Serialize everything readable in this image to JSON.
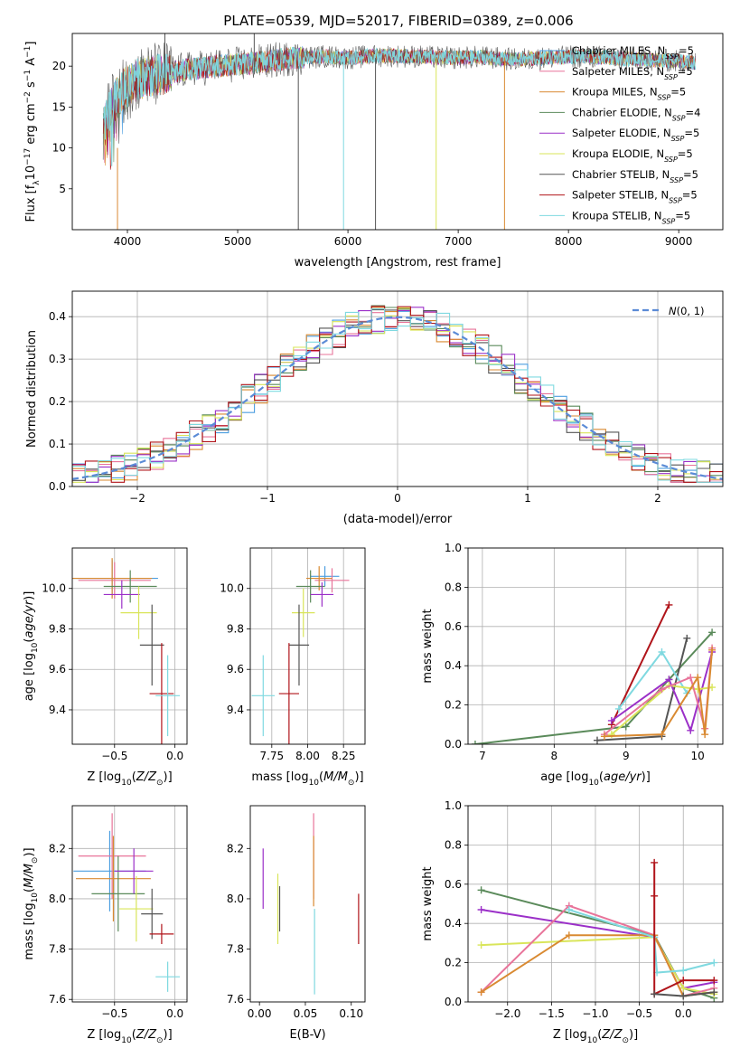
{
  "figure": {
    "title": "PLATE=0539, MJD=52017, FIBERID=0389, z=0.006"
  },
  "colors": {
    "chabrier_miles": "#4c9ee0",
    "salpeter_miles": "#e8749a",
    "kroupa_miles": "#d98a32",
    "chabrier_elodie": "#5a8a5a",
    "salpeter_elodie": "#9b30c8",
    "kroupa_elodie": "#d9e55a",
    "chabrier_stelib": "#555555",
    "salpeter_stelib": "#b0141a",
    "kroupa_stelib": "#7fd9e0",
    "gauss": "#5b8bd6",
    "grid": "#b0b0b0"
  },
  "chart_data": [
    {
      "id": "spectrum",
      "type": "line",
      "xlabel": "wavelength [Angstrom, rest frame]",
      "ylabel": "Flux [f_λ10^-17 erg cm^-2 s^-1 A^-1]",
      "xlim": [
        3500,
        9400
      ],
      "ylim": [
        0,
        24
      ],
      "xticks": [
        4000,
        5000,
        6000,
        7000,
        8000,
        9000
      ],
      "yticks": [
        5,
        10,
        15,
        20
      ],
      "grid": false,
      "legend_position": "top-right",
      "series": [
        {
          "name": "Chabrier MILES, N_SSP=5",
          "color_key": "chabrier_miles"
        },
        {
          "name": "Salpeter MILES, N_SSP=5",
          "color_key": "salpeter_miles"
        },
        {
          "name": "Kroupa MILES, N_SSP=5",
          "color_key": "kroupa_miles"
        },
        {
          "name": "Chabrier ELODIE, N_SSP=4",
          "color_key": "chabrier_elodie"
        },
        {
          "name": "Salpeter ELODIE, N_SSP=5",
          "color_key": "salpeter_elodie"
        },
        {
          "name": "Kroupa ELODIE, N_SSP=5",
          "color_key": "kroupa_elodie"
        },
        {
          "name": "Chabrier STELIB, N_SSP=5",
          "color_key": "chabrier_stelib"
        },
        {
          "name": "Salpeter STELIB, N_SSP=5",
          "color_key": "salpeter_stelib"
        },
        {
          "name": "Kroupa STELIB, N_SSP=5",
          "color_key": "kroupa_stelib"
        }
      ],
      "envelope": {
        "x": [
          3780,
          3850,
          3950,
          4100,
          4300,
          4500,
          4800,
          5000,
          5200,
          5500,
          5800,
          6000,
          6300,
          6600,
          6900,
          7200,
          7500,
          7800,
          8100,
          8400,
          8700,
          9000,
          9150
        ],
        "y": [
          12,
          15,
          17,
          18.5,
          19,
          19.5,
          20,
          20.2,
          20.5,
          21,
          21.2,
          21,
          21.3,
          21.2,
          21,
          21.1,
          20.8,
          21,
          21.2,
          21,
          20.8,
          20.6,
          20.4
        ]
      },
      "spikes": [
        {
          "x": 3910,
          "y0": 0,
          "y1": 10,
          "color_key": "kroupa_miles"
        },
        {
          "x": 5550,
          "y0": 0,
          "y1": 20,
          "color_key": "chabrier_stelib"
        },
        {
          "x": 5960,
          "y0": 0,
          "y1": 21,
          "color_key": "kroupa_stelib"
        },
        {
          "x": 6250,
          "y0": 0,
          "y1": 21,
          "color_key": "chabrier_stelib"
        },
        {
          "x": 6800,
          "y0": 0,
          "y1": 21,
          "color_key": "kroupa_elodie"
        },
        {
          "x": 7420,
          "y0": 0,
          "y1": 21,
          "color_key": "kroupa_miles"
        },
        {
          "x": 4340,
          "y0": 18,
          "y1": 24,
          "color_key": "chabrier_stelib"
        },
        {
          "x": 5150,
          "y0": 19,
          "y1": 24,
          "color_key": "chabrier_stelib"
        }
      ]
    },
    {
      "id": "residuals",
      "type": "histogram",
      "xlabel": "(data-model)/error",
      "ylabel": "Normed distribution",
      "xlim": [
        -2.5,
        2.5
      ],
      "ylim": [
        0,
        0.46
      ],
      "xticks": [
        -2,
        -1,
        0,
        1,
        2
      ],
      "yticks": [
        0.0,
        0.1,
        0.2,
        0.3,
        0.4
      ],
      "grid": true,
      "legend": "N(0,1)",
      "legend_position": "top-right",
      "bin_width": 0.1
    },
    {
      "id": "age_vs_Z",
      "type": "errorbar",
      "xlabel": "Z [log10(Z/Z⊙)]",
      "ylabel": "age [log10(age/yr)]",
      "xlim": [
        -0.85,
        0.1
      ],
      "ylim": [
        9.23,
        10.2
      ],
      "xticks": [
        -0.5,
        0.0
      ],
      "yticks": [
        9.4,
        9.6,
        9.8,
        10.0
      ],
      "grid": true,
      "points": [
        {
          "x": -0.52,
          "y": 10.05,
          "xerr": 0.38,
          "yerr": 0.09,
          "color_key": "chabrier_miles"
        },
        {
          "x": -0.5,
          "y": 10.04,
          "xerr": 0.3,
          "yerr": 0.09,
          "color_key": "salpeter_miles"
        },
        {
          "x": -0.52,
          "y": 10.05,
          "xerr": 0.33,
          "yerr": 0.1,
          "color_key": "kroupa_miles"
        },
        {
          "x": -0.37,
          "y": 10.01,
          "xerr": 0.22,
          "yerr": 0.08,
          "color_key": "chabrier_elodie"
        },
        {
          "x": -0.44,
          "y": 9.97,
          "xerr": 0.15,
          "yerr": 0.07,
          "color_key": "salpeter_elodie"
        },
        {
          "x": -0.3,
          "y": 9.88,
          "xerr": 0.15,
          "yerr": 0.13,
          "color_key": "kroupa_elodie"
        },
        {
          "x": -0.19,
          "y": 9.72,
          "xerr": 0.1,
          "yerr": 0.2,
          "color_key": "chabrier_stelib"
        },
        {
          "x": -0.11,
          "y": 9.48,
          "xerr": 0.1,
          "yerr": 0.25,
          "color_key": "salpeter_stelib"
        },
        {
          "x": -0.06,
          "y": 9.47,
          "xerr": 0.1,
          "yerr": 0.2,
          "color_key": "kroupa_stelib"
        }
      ]
    },
    {
      "id": "age_vs_mass",
      "type": "errorbar",
      "xlabel": "mass [log10(M/M⊙)]",
      "ylabel": "",
      "xlim": [
        7.6,
        8.4
      ],
      "ylim": [
        9.23,
        10.2
      ],
      "xticks": [
        7.75,
        8.0,
        8.25
      ],
      "yticks": [
        9.4,
        9.6,
        9.8,
        10.0
      ],
      "grid": true,
      "points": [
        {
          "x": 8.12,
          "y": 10.06,
          "xerr": 0.1,
          "yerr": 0.05,
          "color_key": "chabrier_miles"
        },
        {
          "x": 8.17,
          "y": 10.04,
          "xerr": 0.12,
          "yerr": 0.06,
          "color_key": "salpeter_miles"
        },
        {
          "x": 8.08,
          "y": 10.05,
          "xerr": 0.09,
          "yerr": 0.06,
          "color_key": "kroupa_miles"
        },
        {
          "x": 8.02,
          "y": 10.01,
          "xerr": 0.1,
          "yerr": 0.08,
          "color_key": "chabrier_elodie"
        },
        {
          "x": 8.1,
          "y": 9.97,
          "xerr": 0.08,
          "yerr": 0.06,
          "color_key": "salpeter_elodie"
        },
        {
          "x": 7.97,
          "y": 9.88,
          "xerr": 0.08,
          "yerr": 0.12,
          "color_key": "kroupa_elodie"
        },
        {
          "x": 7.94,
          "y": 9.72,
          "xerr": 0.07,
          "yerr": 0.2,
          "color_key": "chabrier_stelib"
        },
        {
          "x": 7.87,
          "y": 9.48,
          "xerr": 0.07,
          "yerr": 0.25,
          "color_key": "salpeter_stelib"
        },
        {
          "x": 7.69,
          "y": 9.47,
          "xerr": 0.08,
          "yerr": 0.2,
          "color_key": "kroupa_stelib"
        }
      ]
    },
    {
      "id": "weight_vs_age",
      "type": "line",
      "xlabel": "age [log10(age/yr)]",
      "ylabel": "mass weight",
      "xlim": [
        6.8,
        10.35
      ],
      "ylim": [
        0,
        1
      ],
      "xticks": [
        7,
        8,
        9,
        10
      ],
      "yticks": [
        0.0,
        0.2,
        0.4,
        0.6,
        0.8,
        1.0
      ],
      "grid": true,
      "series": [
        {
          "color_key": "chabrier_elodie",
          "x": [
            6.9,
            9.0,
            9.6,
            10.2
          ],
          "y": [
            0.0,
            0.09,
            0.33,
            0.57
          ]
        },
        {
          "color_key": "salpeter_stelib",
          "x": [
            8.8,
            9.6
          ],
          "y": [
            0.1,
            0.71
          ]
        },
        {
          "color_key": "chabrier_stelib",
          "x": [
            8.6,
            9.5,
            9.85
          ],
          "y": [
            0.02,
            0.04,
            0.54
          ]
        },
        {
          "color_key": "salpeter_elodie",
          "x": [
            8.8,
            9.6,
            9.9,
            10.2
          ],
          "y": [
            0.12,
            0.33,
            0.07,
            0.47
          ]
        },
        {
          "color_key": "kroupa_stelib",
          "x": [
            8.9,
            9.5,
            9.85
          ],
          "y": [
            0.18,
            0.47,
            0.26
          ]
        },
        {
          "color_key": "kroupa_elodie",
          "x": [
            8.8,
            9.6,
            10.0,
            10.2
          ],
          "y": [
            0.05,
            0.3,
            0.28,
            0.29
          ]
        },
        {
          "color_key": "salpeter_miles",
          "x": [
            8.7,
            9.5,
            9.9,
            10.1,
            10.2
          ],
          "y": [
            0.05,
            0.28,
            0.34,
            0.08,
            0.49
          ]
        },
        {
          "color_key": "kroupa_miles",
          "x": [
            8.7,
            9.5,
            10.0,
            10.1,
            10.2
          ],
          "y": [
            0.04,
            0.05,
            0.34,
            0.05,
            0.48
          ]
        }
      ]
    },
    {
      "id": "mass_vs_Z",
      "type": "errorbar",
      "xlabel": "Z [log10(Z/Z⊙)]",
      "ylabel": "mass [log10(M/M⊙)]",
      "xlim": [
        -0.85,
        0.1
      ],
      "ylim": [
        7.59,
        8.37
      ],
      "xticks": [
        -0.5,
        0.0
      ],
      "yticks": [
        7.6,
        7.8,
        8.0,
        8.2
      ],
      "grid": true,
      "points": [
        {
          "x": -0.54,
          "y": 8.11,
          "xerr": 0.3,
          "yerr": 0.16,
          "color_key": "chabrier_miles"
        },
        {
          "x": -0.52,
          "y": 8.17,
          "xerr": 0.28,
          "yerr": 0.17,
          "color_key": "salpeter_miles"
        },
        {
          "x": -0.51,
          "y": 8.08,
          "xerr": 0.31,
          "yerr": 0.17,
          "color_key": "kroupa_miles"
        },
        {
          "x": -0.47,
          "y": 8.02,
          "xerr": 0.22,
          "yerr": 0.15,
          "color_key": "chabrier_elodie"
        },
        {
          "x": -0.34,
          "y": 8.11,
          "xerr": 0.16,
          "yerr": 0.09,
          "color_key": "salpeter_elodie"
        },
        {
          "x": -0.32,
          "y": 7.96,
          "xerr": 0.14,
          "yerr": 0.13,
          "color_key": "kroupa_elodie"
        },
        {
          "x": -0.19,
          "y": 7.94,
          "xerr": 0.09,
          "yerr": 0.1,
          "color_key": "chabrier_stelib"
        },
        {
          "x": -0.11,
          "y": 7.86,
          "xerr": 0.1,
          "yerr": 0.04,
          "color_key": "salpeter_stelib"
        },
        {
          "x": -0.06,
          "y": 7.69,
          "xerr": 0.1,
          "yerr": 0.06,
          "color_key": "kroupa_stelib"
        }
      ]
    },
    {
      "id": "mass_vs_ebv",
      "type": "errorbar",
      "xlabel": "E(B-V)",
      "ylabel": "",
      "xlim": [
        -0.01,
        0.115
      ],
      "ylim": [
        7.59,
        8.37
      ],
      "xticks": [
        0.0,
        0.05,
        0.1
      ],
      "yticks": [
        7.6,
        7.8,
        8.0,
        8.2
      ],
      "grid": false,
      "points": [
        {
          "x": 0.004,
          "y": 8.08,
          "yerr": 0.12,
          "color_key": "salpeter_elodie"
        },
        {
          "x": 0.02,
          "y": 7.96,
          "yerr": 0.14,
          "color_key": "kroupa_elodie"
        },
        {
          "x": 0.022,
          "y": 7.96,
          "yerr": 0.09,
          "color_key": "chabrier_stelib"
        },
        {
          "x": 0.059,
          "y": 8.17,
          "yerr": 0.17,
          "color_key": "salpeter_miles"
        },
        {
          "x": 0.059,
          "y": 8.11,
          "yerr": 0.14,
          "color_key": "kroupa_miles"
        },
        {
          "x": 0.06,
          "y": 7.79,
          "yerr": 0.17,
          "color_key": "kroupa_stelib"
        },
        {
          "x": 0.108,
          "y": 7.92,
          "yerr": 0.1,
          "color_key": "salpeter_stelib"
        }
      ]
    },
    {
      "id": "weight_vs_Z",
      "type": "line",
      "xlabel": "Z [log10(Z/Z⊙)]",
      "ylabel": "mass weight",
      "xlim": [
        -2.45,
        0.45
      ],
      "ylim": [
        0,
        1
      ],
      "xticks": [
        -2.0,
        -1.5,
        -1.0,
        -0.5,
        0.0
      ],
      "yticks": [
        0.0,
        0.2,
        0.4,
        0.6,
        0.8,
        1.0
      ],
      "grid": true,
      "series": [
        {
          "color_key": "chabrier_elodie",
          "x": [
            -2.3,
            -0.33,
            0.0,
            0.35
          ],
          "y": [
            0.57,
            0.34,
            0.07,
            0.02
          ]
        },
        {
          "color_key": "salpeter_elodie",
          "x": [
            -2.3,
            -0.33,
            0.0,
            0.35
          ],
          "y": [
            0.47,
            0.33,
            0.07,
            0.1
          ]
        },
        {
          "color_key": "kroupa_elodie",
          "x": [
            -2.3,
            -0.33,
            0.0,
            0.35
          ],
          "y": [
            0.29,
            0.33,
            0.07,
            0.04
          ]
        },
        {
          "color_key": "salpeter_miles",
          "x": [
            -2.3,
            -1.3,
            -0.33,
            0.0,
            0.35
          ],
          "y": [
            0.05,
            0.49,
            0.34,
            0.03,
            0.07
          ]
        },
        {
          "color_key": "kroupa_miles",
          "x": [
            -2.3,
            -1.3,
            -0.33,
            0.0,
            0.35
          ],
          "y": [
            0.05,
            0.34,
            0.34,
            0.03,
            0.05
          ]
        },
        {
          "color_key": "kroupa_stelib",
          "x": [
            -1.3,
            -0.33,
            -0.3,
            0.0,
            0.35
          ],
          "y": [
            0.47,
            0.33,
            0.15,
            0.16,
            0.2
          ]
        },
        {
          "color_key": "salpeter_stelib",
          "x": [
            -0.33,
            -0.33,
            -0.33,
            0.0,
            0.35
          ],
          "y": [
            0.71,
            0.54,
            0.04,
            0.11,
            0.11
          ]
        },
        {
          "color_key": "chabrier_stelib",
          "x": [
            -0.33,
            0.0,
            0.35
          ],
          "y": [
            0.04,
            0.03,
            0.05
          ]
        }
      ]
    }
  ]
}
